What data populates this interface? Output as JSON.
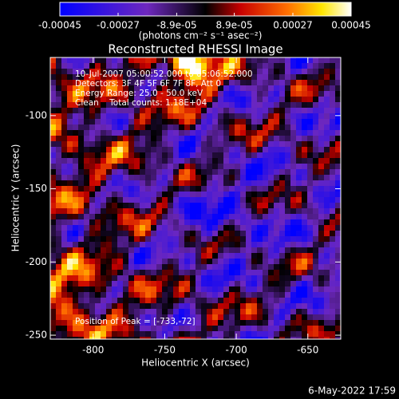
{
  "chart_data": {
    "type": "image",
    "title": "Reconstructed RHESSI Image",
    "xlabel": "Heliocentric X (arcsec)",
    "ylabel": "Heliocentric Y (arcsec)",
    "xlim": [
      -830,
      -627
    ],
    "xticks": [
      -800,
      -750,
      -700,
      -650
    ],
    "ylim": [
      -252.7,
      -60.3
    ],
    "yticks": [
      -100,
      -150,
      -200,
      -250
    ],
    "colorbar": {
      "lim": [
        -0.00045,
        0.00045
      ],
      "ticks": [
        {
          "value": -0.00045,
          "label": "-0.00045"
        },
        {
          "value": -0.00027,
          "label": "-0.00027"
        },
        {
          "value": -8.9e-05,
          "label": "-8.9e-05"
        },
        {
          "value": 8.9e-05,
          "label": "8.9e-05"
        },
        {
          "value": 0.00027,
          "label": "0.00027"
        },
        {
          "value": 0.00045,
          "label": "0.00045"
        }
      ],
      "units": "(photons cm⁻² s⁻¹ asec⁻²)"
    },
    "annotations": [
      "10-Jul-2007 05:00:52.000 to 05:06:52.000",
      "Detectors: 3F 4F 5F 6F 7F 8F, Att 0",
      "Energy Range: 25.0 - 50.0 keV",
      "Clean    Total counts: 1.18E+04"
    ],
    "peak_note": "Position of Peak = [-733,-72]",
    "footer": "6-May-2022 17:59"
  }
}
